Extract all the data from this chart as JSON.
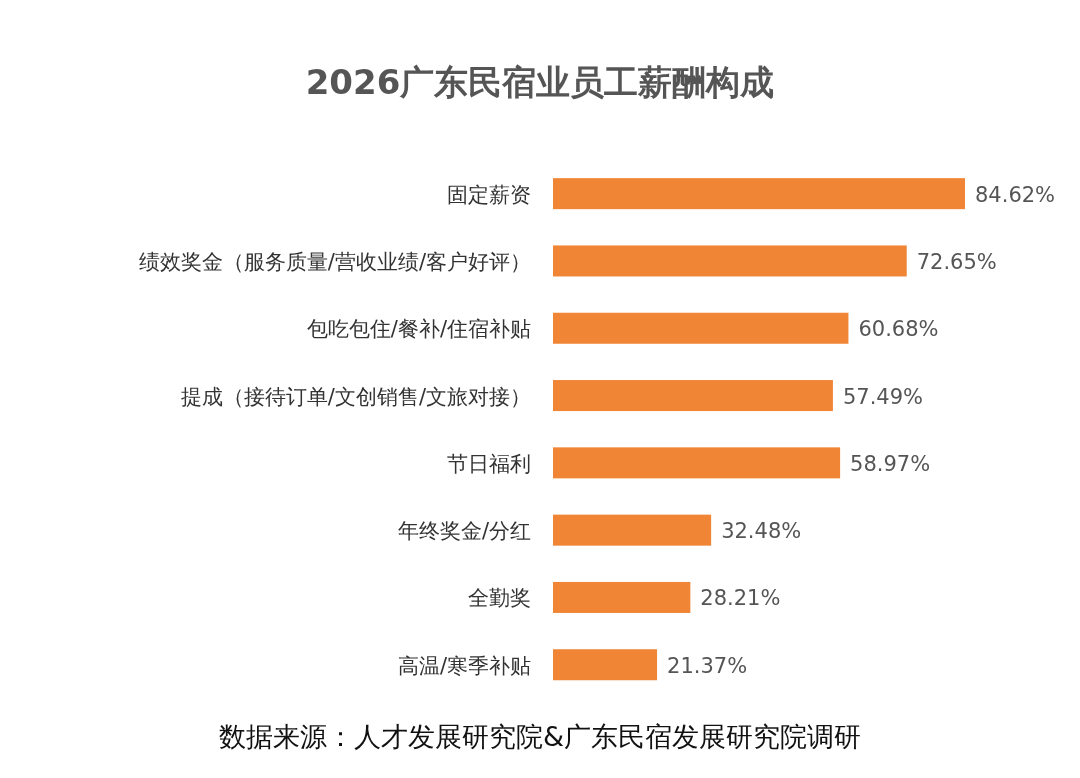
{
  "chart_data": {
    "type": "bar",
    "orientation": "horizontal",
    "title": "2026广东民宿业员工薪酬构成",
    "categories": [
      "固定薪资",
      "绩效奖金（服务质量/营收业绩/客户好评）",
      "包吃包住/餐补/住宿补贴",
      "提成（接待订单/文创销售/文旅对接）",
      "节日福利",
      "年终奖金/分红",
      "全勤奖",
      "高温/寒季补贴"
    ],
    "values": [
      84.62,
      72.65,
      60.68,
      57.49,
      58.97,
      32.48,
      28.21,
      21.37
    ],
    "value_labels": [
      "84.62%",
      "72.65%",
      "60.68%",
      "57.49%",
      "58.97%",
      "32.48%",
      "28.21%",
      "21.37%"
    ],
    "color": "#f08535",
    "annotations": [
      "数据来源：人才发展研究院&广东民宿发展研究院调研"
    ]
  }
}
